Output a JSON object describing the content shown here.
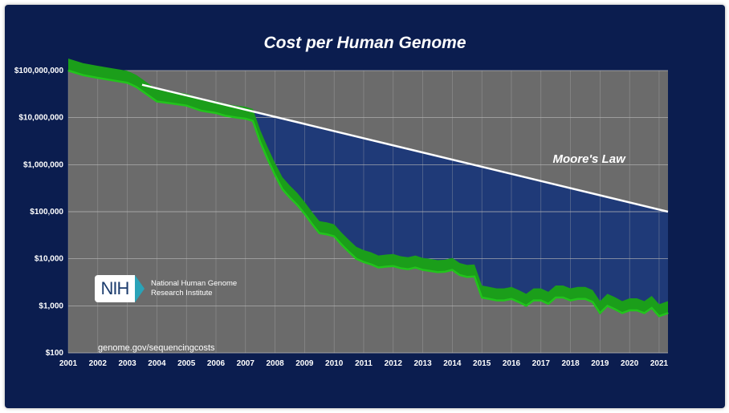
{
  "chart_data": {
    "type": "line",
    "title": "Cost per Human Genome",
    "xlabel": "",
    "ylabel": "",
    "y_scale": "log",
    "ylim": [
      100,
      100000000
    ],
    "yticks": [
      "$100,000,000",
      "$10,000,000",
      "$1,000,000",
      "$100,000",
      "$10,000",
      "$1,000",
      "$100"
    ],
    "xlim": [
      2001,
      2021.3
    ],
    "xticks": [
      "2001",
      "2002",
      "2003",
      "2004",
      "2005",
      "2006",
      "2007",
      "2008",
      "2009",
      "2010",
      "2011",
      "2012",
      "2013",
      "2014",
      "2015",
      "2016",
      "2017",
      "2018",
      "2019",
      "2020",
      "2021"
    ],
    "grid": true,
    "series": [
      {
        "name": "",
        "color": "#22c41c",
        "x": [
          2001.0,
          2001.5,
          2002.0,
          2002.5,
          2003.0,
          2003.3,
          2003.7,
          2004.0,
          2004.5,
          2005.0,
          2005.5,
          2006.0,
          2006.3,
          2006.7,
          2007.0,
          2007.25,
          2007.5,
          2007.75,
          2008.0,
          2008.25,
          2008.5,
          2008.75,
          2009.0,
          2009.25,
          2009.5,
          2009.75,
          2010.0,
          2010.25,
          2010.5,
          2010.75,
          2011.0,
          2011.25,
          2011.5,
          2011.75,
          2012.0,
          2012.25,
          2012.5,
          2012.75,
          2013.0,
          2013.25,
          2013.5,
          2013.75,
          2014.0,
          2014.25,
          2014.5,
          2014.75,
          2015.0,
          2015.25,
          2015.5,
          2015.75,
          2016.0,
          2016.25,
          2016.5,
          2016.75,
          2017.0,
          2017.25,
          2017.5,
          2017.75,
          2018.0,
          2018.25,
          2018.5,
          2018.75,
          2019.0,
          2019.25,
          2019.5,
          2019.75,
          2020.0,
          2020.25,
          2020.5,
          2020.75,
          2021.0,
          2021.3
        ],
        "values": [
          100000000,
          80000000,
          70000000,
          62000000,
          55000000,
          45000000,
          30000000,
          22000000,
          20000000,
          18000000,
          14000000,
          12500000,
          11000000,
          10000000,
          9500000,
          8500000,
          3000000,
          1300000,
          600000,
          300000,
          200000,
          140000,
          90000,
          55000,
          35000,
          33000,
          30000,
          20000,
          14000,
          10000,
          8500,
          7600,
          6500,
          6800,
          7000,
          6300,
          6000,
          6500,
          5800,
          5500,
          5200,
          5300,
          5800,
          4500,
          4100,
          4200,
          1500,
          1400,
          1300,
          1300,
          1400,
          1200,
          1000,
          1300,
          1300,
          1100,
          1500,
          1500,
          1300,
          1400,
          1400,
          1200,
          700,
          1000,
          850,
          700,
          800,
          800,
          700,
          900,
          600,
          700
        ]
      },
      {
        "name": "Moore's Law",
        "color": "#ffffff",
        "x": [
          2003.5,
          2021.3
        ],
        "values": [
          50000000,
          100000
        ]
      }
    ],
    "annotations": [
      "Moore's Law"
    ]
  },
  "branding": {
    "logo_text": "NIH",
    "org_line1": "National Human Genome",
    "org_line2": "Research Institute",
    "source_url": "genome.gov/sequencingcosts"
  },
  "colors": {
    "background": "#0b1d4f",
    "plot_area": "#6b6b6b",
    "gap_fill": "#1f3a78",
    "band": "#1b9e1a",
    "cost_line": "#22c41c",
    "moore_line": "#ffffff"
  }
}
